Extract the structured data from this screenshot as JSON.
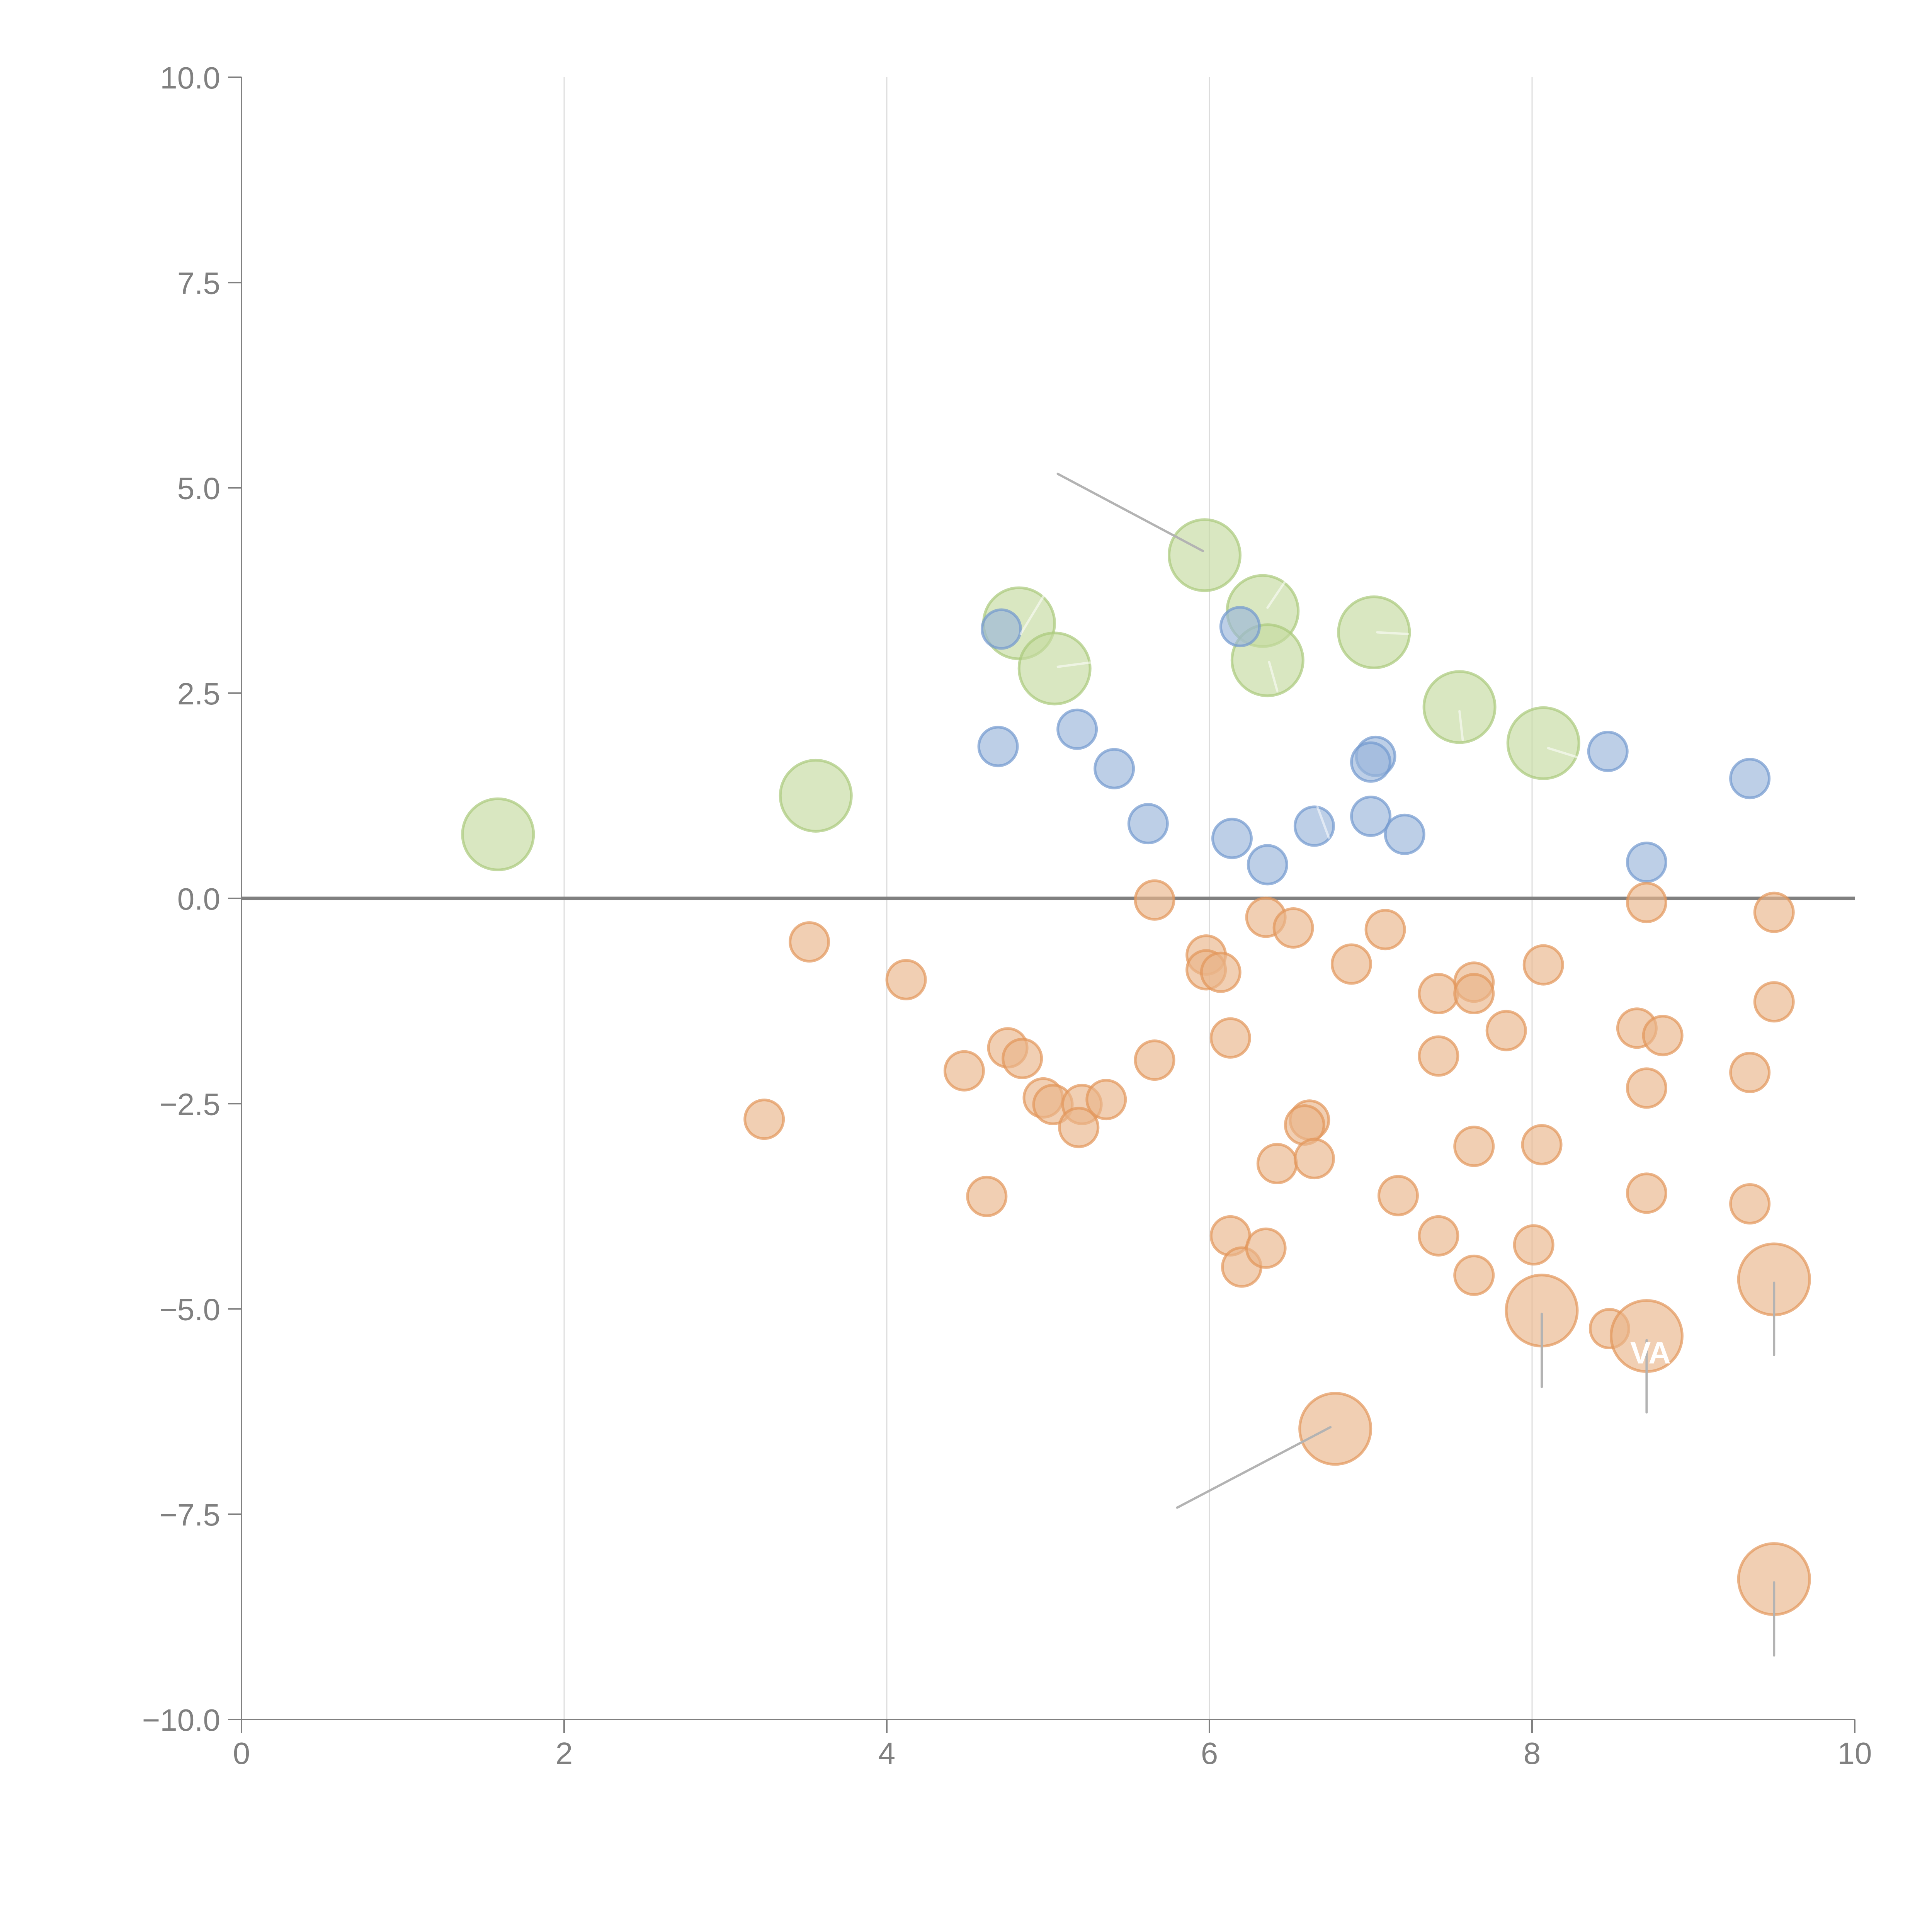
{
  "chart_data": {
    "type": "scatter",
    "title": "",
    "xlabel": "",
    "ylabel": "",
    "xlim": [
      0,
      10
    ],
    "ylim": [
      -10,
      10
    ],
    "x_ticks": [
      "0",
      "2",
      "4",
      "6",
      "8",
      "10"
    ],
    "x_tick_values": [
      0,
      2,
      4,
      6,
      8,
      10
    ],
    "y_ticks": [
      "10.0",
      "7.5",
      "5.0",
      "2.5",
      "0.0",
      "−2.5",
      "−5.0",
      "−7.5",
      "−10.0"
    ],
    "y_tick_values": [
      10,
      7.5,
      5,
      2.5,
      0,
      -2.5,
      -5,
      -7.5,
      -10
    ],
    "grid": {
      "x": true,
      "y": false
    },
    "reference_line_y": 0,
    "legend": null,
    "colors": {
      "green_fill": "#c5da9f",
      "green_stroke": "#a9c97a",
      "blue_fill": "#9ab5da",
      "blue_stroke": "#7299cf",
      "orange_fill": "#e9b68a",
      "orange_stroke": "#e2955a",
      "axis": "#808080",
      "grid": "#dcdcdc",
      "leader": "#b3b3b3"
    },
    "series": [
      {
        "name": "green",
        "size": "large",
        "points": [
          {
            "x": 1.59,
            "y": 0.78
          },
          {
            "x": 3.56,
            "y": 1.25
          },
          {
            "x": 4.82,
            "y": 3.35
          },
          {
            "x": 5.04,
            "y": 2.8
          },
          {
            "x": 5.97,
            "y": 4.18
          },
          {
            "x": 6.33,
            "y": 3.5
          },
          {
            "x": 6.36,
            "y": 2.9
          },
          {
            "x": 7.02,
            "y": 3.24
          },
          {
            "x": 7.55,
            "y": 2.33
          },
          {
            "x": 8.07,
            "y": 1.89
          }
        ]
      },
      {
        "name": "blue",
        "size": "small",
        "points": [
          {
            "x": 4.71,
            "y": 3.28
          },
          {
            "x": 4.69,
            "y": 1.85
          },
          {
            "x": 5.18,
            "y": 2.06
          },
          {
            "x": 5.41,
            "y": 1.58
          },
          {
            "x": 5.62,
            "y": 0.91
          },
          {
            "x": 6.19,
            "y": 3.31
          },
          {
            "x": 6.14,
            "y": 0.73
          },
          {
            "x": 6.36,
            "y": 0.41
          },
          {
            "x": 6.65,
            "y": 0.88
          },
          {
            "x": 7.0,
            "y": 1.0
          },
          {
            "x": 7.03,
            "y": 1.73
          },
          {
            "x": 7.0,
            "y": 1.66
          },
          {
            "x": 7.21,
            "y": 0.78
          },
          {
            "x": 8.47,
            "y": 1.79
          },
          {
            "x": 8.71,
            "y": 0.44
          },
          {
            "x": 9.35,
            "y": 1.46
          }
        ]
      },
      {
        "name": "orange",
        "size": "small",
        "points": [
          {
            "x": 3.52,
            "y": -0.53
          },
          {
            "x": 3.24,
            "y": -2.69
          },
          {
            "x": 4.12,
            "y": -0.99
          },
          {
            "x": 4.48,
            "y": -2.1
          },
          {
            "x": 4.62,
            "y": -3.63
          },
          {
            "x": 4.75,
            "y": -1.82
          },
          {
            "x": 4.84,
            "y": -1.95
          },
          {
            "x": 4.97,
            "y": -2.43
          },
          {
            "x": 5.03,
            "y": -2.51
          },
          {
            "x": 5.21,
            "y": -2.51
          },
          {
            "x": 5.19,
            "y": -2.79
          },
          {
            "x": 5.36,
            "y": -2.45
          },
          {
            "x": 5.66,
            "y": -0.02
          },
          {
            "x": 5.66,
            "y": -1.97
          },
          {
            "x": 5.98,
            "y": -0.69
          },
          {
            "x": 5.98,
            "y": -0.87
          },
          {
            "x": 6.07,
            "y": -0.9
          },
          {
            "x": 6.13,
            "y": -1.7
          },
          {
            "x": 6.35,
            "y": -0.23
          },
          {
            "x": 6.52,
            "y": -0.36
          },
          {
            "x": 6.13,
            "y": -4.11
          },
          {
            "x": 6.2,
            "y": -4.49
          },
          {
            "x": 6.35,
            "y": -4.26
          },
          {
            "x": 6.42,
            "y": -3.23
          },
          {
            "x": 6.62,
            "y": -2.7
          },
          {
            "x": 6.59,
            "y": -2.76
          },
          {
            "x": 6.65,
            "y": -3.17
          },
          {
            "x": 6.88,
            "y": -0.8
          },
          {
            "x": 7.09,
            "y": -0.38
          },
          {
            "x": 7.17,
            "y": -3.62
          },
          {
            "x": 7.42,
            "y": -1.16
          },
          {
            "x": 7.42,
            "y": -1.92
          },
          {
            "x": 7.42,
            "y": -4.11
          },
          {
            "x": 7.64,
            "y": -1.02
          },
          {
            "x": 7.64,
            "y": -1.16
          },
          {
            "x": 7.64,
            "y": -3.02
          },
          {
            "x": 7.64,
            "y": -4.59
          },
          {
            "x": 7.84,
            "y": -1.61
          },
          {
            "x": 8.07,
            "y": -0.81
          },
          {
            "x": 8.06,
            "y": -3.0
          },
          {
            "x": 8.01,
            "y": -4.22
          },
          {
            "x": 8.48,
            "y": -5.24
          },
          {
            "x": 8.65,
            "y": -1.58
          },
          {
            "x": 8.71,
            "y": -0.05
          },
          {
            "x": 8.81,
            "y": -1.67
          },
          {
            "x": 8.71,
            "y": -2.31
          },
          {
            "x": 8.71,
            "y": -3.59
          },
          {
            "x": 9.35,
            "y": -2.12
          },
          {
            "x": 9.35,
            "y": -3.72
          },
          {
            "x": 9.5,
            "y": -0.17
          },
          {
            "x": 9.5,
            "y": -1.26
          }
        ]
      },
      {
        "name": "orange-highlighted",
        "size": "large",
        "points": [
          {
            "x": 8.06,
            "y": -5.02
          },
          {
            "x": 8.71,
            "y": -5.33
          },
          {
            "x": 9.5,
            "y": -4.64
          },
          {
            "x": 6.78,
            "y": -6.46
          },
          {
            "x": 9.5,
            "y": -8.29
          }
        ]
      }
    ],
    "annotations": [
      {
        "label": "",
        "from": {
          "x": 5.96,
          "y": 4.23
        },
        "to": {
          "x": 5.06,
          "y": 5.17
        },
        "style": "gray"
      },
      {
        "label": "",
        "from": {
          "x": 6.75,
          "y": -6.44
        },
        "to": {
          "x": 5.8,
          "y": -7.42
        },
        "style": "gray"
      },
      {
        "label": "",
        "from": {
          "x": 8.06,
          "y": -5.06
        },
        "to": {
          "x": 8.06,
          "y": -5.95
        },
        "style": "gray"
      },
      {
        "label": "VA",
        "from": {
          "x": 8.71,
          "y": -5.38
        },
        "to": {
          "x": 8.71,
          "y": -6.26
        },
        "style": "gray"
      },
      {
        "label": "",
        "from": {
          "x": 9.5,
          "y": -4.68
        },
        "to": {
          "x": 9.5,
          "y": -5.56
        },
        "style": "gray"
      },
      {
        "label": "",
        "from": {
          "x": 9.5,
          "y": -8.33
        },
        "to": {
          "x": 9.5,
          "y": -9.22
        },
        "style": "gray"
      },
      {
        "label": "",
        "from": {
          "x": 4.83,
          "y": 3.22
        },
        "to": {
          "x": 4.99,
          "y": 3.74
        },
        "style": "white"
      },
      {
        "label": "",
        "from": {
          "x": 5.06,
          "y": 2.82
        },
        "to": {
          "x": 5.29,
          "y": 2.88
        },
        "style": "white"
      },
      {
        "label": "",
        "from": {
          "x": 6.36,
          "y": 3.54
        },
        "to": {
          "x": 6.49,
          "y": 3.92
        },
        "style": "white"
      },
      {
        "label": "",
        "from": {
          "x": 6.37,
          "y": 2.88
        },
        "to": {
          "x": 6.42,
          "y": 2.53
        },
        "style": "white"
      },
      {
        "label": "",
        "from": {
          "x": 7.04,
          "y": 3.24
        },
        "to": {
          "x": 7.23,
          "y": 3.22
        },
        "style": "white"
      },
      {
        "label": "",
        "from": {
          "x": 7.55,
          "y": 2.28
        },
        "to": {
          "x": 7.57,
          "y": 1.93
        },
        "style": "white"
      },
      {
        "label": "",
        "from": {
          "x": 8.1,
          "y": 1.83
        },
        "to": {
          "x": 8.28,
          "y": 1.72
        },
        "style": "white"
      },
      {
        "label": "",
        "from": {
          "x": 6.67,
          "y": 1.11
        },
        "to": {
          "x": 6.74,
          "y": 0.74
        },
        "style": "white"
      }
    ]
  }
}
